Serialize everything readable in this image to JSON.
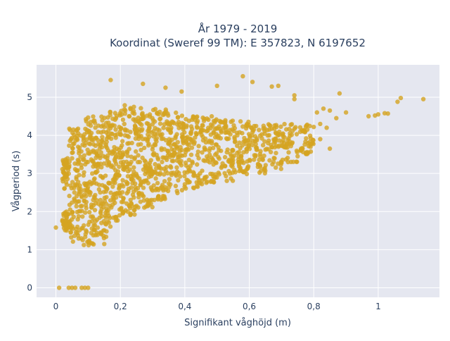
{
  "chart_data": {
    "type": "scatter",
    "title_line1": "År 1979 - 2019",
    "title_line2": "Koordinat (Sweref 99 TM): E 357823, N 6197652",
    "xlabel": "Signifikant våghöjd (m)",
    "ylabel": "Vågperiod (s)",
    "xlim": [
      -0.06,
      1.19
    ],
    "ylim": [
      -0.25,
      5.85
    ],
    "x_ticks": [
      0,
      0.2,
      0.4,
      0.6,
      0.8,
      1
    ],
    "x_tick_labels": [
      "0",
      "0,2",
      "0,4",
      "0,6",
      "0,8",
      "1"
    ],
    "y_ticks": [
      0,
      1,
      2,
      3,
      4,
      5
    ],
    "y_tick_labels": [
      "0",
      "1",
      "2",
      "3",
      "4",
      "5"
    ],
    "grid": true,
    "marker_color": "#d4a421",
    "plot_background": "#e5e7f0",
    "point_cloud": [
      {
        "x_min": 0.02,
        "x_max": 0.04,
        "y_min": 1.5,
        "y_max": 2.0
      },
      {
        "x_min": 0.02,
        "x_max": 0.04,
        "y_min": 2.6,
        "y_max": 3.4
      },
      {
        "x_min": 0.04,
        "x_max": 0.08,
        "y_min": 1.2,
        "y_max": 4.2
      },
      {
        "x_min": 0.08,
        "x_max": 0.12,
        "y_min": 1.1,
        "y_max": 4.5
      },
      {
        "x_min": 0.12,
        "x_max": 0.16,
        "y_min": 1.3,
        "y_max": 4.6
      },
      {
        "x_min": 0.16,
        "x_max": 0.2,
        "y_min": 1.6,
        "y_max": 4.7
      },
      {
        "x_min": 0.2,
        "x_max": 0.25,
        "y_min": 1.9,
        "y_max": 4.8
      },
      {
        "x_min": 0.25,
        "x_max": 0.3,
        "y_min": 2.1,
        "y_max": 4.8
      },
      {
        "x_min": 0.3,
        "x_max": 0.35,
        "y_min": 2.3,
        "y_max": 4.7
      },
      {
        "x_min": 0.35,
        "x_max": 0.4,
        "y_min": 2.45,
        "y_max": 4.6
      },
      {
        "x_min": 0.4,
        "x_max": 0.45,
        "y_min": 2.6,
        "y_max": 4.5
      },
      {
        "x_min": 0.45,
        "x_max": 0.5,
        "y_min": 2.7,
        "y_max": 4.5
      },
      {
        "x_min": 0.5,
        "x_max": 0.55,
        "y_min": 2.8,
        "y_max": 4.4
      },
      {
        "x_min": 0.55,
        "x_max": 0.6,
        "y_min": 2.9,
        "y_max": 4.4
      },
      {
        "x_min": 0.6,
        "x_max": 0.65,
        "y_min": 3.0,
        "y_max": 4.3
      },
      {
        "x_min": 0.65,
        "x_max": 0.7,
        "y_min": 3.1,
        "y_max": 4.3
      },
      {
        "x_min": 0.7,
        "x_max": 0.75,
        "y_min": 3.3,
        "y_max": 4.3
      },
      {
        "x_min": 0.75,
        "x_max": 0.8,
        "y_min": 3.5,
        "y_max": 4.3
      }
    ],
    "outliers": [
      {
        "x": 0.01,
        "y": 0
      },
      {
        "x": 0.04,
        "y": 0
      },
      {
        "x": 0.05,
        "y": 0
      },
      {
        "x": 0.06,
        "y": 0
      },
      {
        "x": 0.08,
        "y": 0
      },
      {
        "x": 0.09,
        "y": 0
      },
      {
        "x": 0.1,
        "y": 0
      },
      {
        "x": 0.0,
        "y": 1.58
      },
      {
        "x": 0.02,
        "y": 1.75
      },
      {
        "x": 0.15,
        "y": 1.15
      },
      {
        "x": 0.17,
        "y": 5.45
      },
      {
        "x": 0.27,
        "y": 5.35
      },
      {
        "x": 0.34,
        "y": 5.25
      },
      {
        "x": 0.39,
        "y": 5.15
      },
      {
        "x": 0.5,
        "y": 5.3
      },
      {
        "x": 0.58,
        "y": 5.55
      },
      {
        "x": 0.61,
        "y": 5.4
      },
      {
        "x": 0.67,
        "y": 5.28
      },
      {
        "x": 0.69,
        "y": 5.3
      },
      {
        "x": 0.74,
        "y": 5.05
      },
      {
        "x": 0.74,
        "y": 4.95
      },
      {
        "x": 0.88,
        "y": 5.1
      },
      {
        "x": 0.81,
        "y": 4.6
      },
      {
        "x": 0.83,
        "y": 4.7
      },
      {
        "x": 0.85,
        "y": 4.65
      },
      {
        "x": 0.9,
        "y": 4.6
      },
      {
        "x": 0.87,
        "y": 4.45
      },
      {
        "x": 0.78,
        "y": 4.15
      },
      {
        "x": 0.8,
        "y": 4.22
      },
      {
        "x": 0.82,
        "y": 4.3
      },
      {
        "x": 0.84,
        "y": 4.2
      },
      {
        "x": 0.76,
        "y": 3.6
      },
      {
        "x": 0.79,
        "y": 3.7
      },
      {
        "x": 0.82,
        "y": 3.9
      },
      {
        "x": 0.75,
        "y": 3.45
      },
      {
        "x": 0.72,
        "y": 3.3
      },
      {
        "x": 0.85,
        "y": 3.65
      },
      {
        "x": 0.97,
        "y": 4.5
      },
      {
        "x": 0.99,
        "y": 4.52
      },
      {
        "x": 1.0,
        "y": 4.55
      },
      {
        "x": 1.02,
        "y": 4.58
      },
      {
        "x": 1.03,
        "y": 4.57
      },
      {
        "x": 1.06,
        "y": 4.88
      },
      {
        "x": 1.07,
        "y": 4.98
      },
      {
        "x": 1.14,
        "y": 4.95
      }
    ]
  }
}
